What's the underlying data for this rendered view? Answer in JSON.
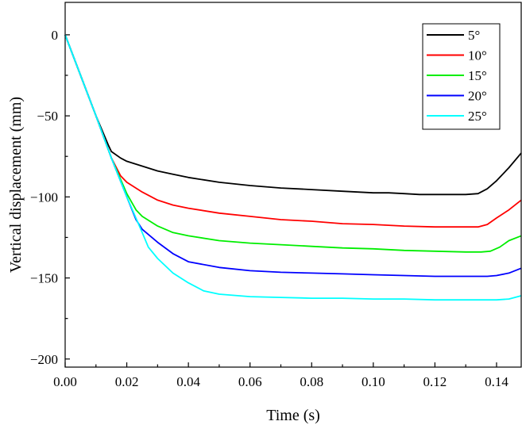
{
  "chart_data": {
    "type": "line",
    "title": "",
    "xlabel": "Time (s)",
    "ylabel": "Vertical displacement (mm)",
    "xlim": [
      0,
      0.148
    ],
    "ylim": [
      -205,
      20
    ],
    "xticks": [
      0.0,
      0.02,
      0.04,
      0.06,
      0.08,
      0.1,
      0.12,
      0.14
    ],
    "xtick_labels": [
      "0.00",
      "0.02",
      "0.04",
      "0.06",
      "0.08",
      "0.10",
      "0.12",
      "0.14"
    ],
    "yticks": [
      0,
      -50,
      -100,
      -150,
      -200
    ],
    "ytick_labels": [
      "0",
      "−50",
      "−100",
      "−150",
      "−200"
    ],
    "grid": false,
    "legend_position": "top-right",
    "series": [
      {
        "name": "5°",
        "color": "#000000",
        "x": [
          0,
          0.005,
          0.01,
          0.014,
          0.015,
          0.018,
          0.02,
          0.025,
          0.03,
          0.035,
          0.04,
          0.05,
          0.06,
          0.07,
          0.08,
          0.09,
          0.1,
          0.105,
          0.11,
          0.115,
          0.12,
          0.125,
          0.13,
          0.134,
          0.137,
          0.14,
          0.144,
          0.148
        ],
        "y": [
          0,
          -25,
          -50,
          -68,
          -72,
          -76,
          -78,
          -81,
          -84,
          -86,
          -88,
          -91,
          -93,
          -94.5,
          -95.5,
          -96.5,
          -97.5,
          -97.5,
          -98,
          -98.5,
          -98.5,
          -98.5,
          -98.5,
          -98,
          -95,
          -90,
          -82,
          -73
        ]
      },
      {
        "name": "10°",
        "color": "#ff0000",
        "x": [
          0,
          0.005,
          0.01,
          0.015,
          0.018,
          0.02,
          0.025,
          0.03,
          0.035,
          0.04,
          0.05,
          0.06,
          0.07,
          0.08,
          0.09,
          0.1,
          0.11,
          0.12,
          0.13,
          0.134,
          0.137,
          0.14,
          0.144,
          0.148
        ],
        "y": [
          0,
          -25,
          -50,
          -76,
          -87,
          -91,
          -97,
          -102,
          -105,
          -107,
          -110,
          -112,
          -114,
          -115,
          -116.5,
          -117,
          -118,
          -118.5,
          -118.5,
          -118.5,
          -117,
          -113,
          -108,
          -102
        ]
      },
      {
        "name": "15°",
        "color": "#00ee00",
        "x": [
          0,
          0.005,
          0.01,
          0.015,
          0.02,
          0.023,
          0.025,
          0.03,
          0.035,
          0.04,
          0.05,
          0.06,
          0.07,
          0.08,
          0.09,
          0.1,
          0.11,
          0.12,
          0.13,
          0.135,
          0.138,
          0.141,
          0.144,
          0.148
        ],
        "y": [
          0,
          -25,
          -50,
          -76,
          -98,
          -108,
          -112,
          -118,
          -122,
          -124,
          -127,
          -128.5,
          -129.5,
          -130.5,
          -131.5,
          -132,
          -133,
          -133.5,
          -134,
          -134,
          -133.5,
          -131,
          -127,
          -124
        ]
      },
      {
        "name": "20°",
        "color": "#0000ff",
        "x": [
          0,
          0.005,
          0.01,
          0.015,
          0.02,
          0.023,
          0.025,
          0.03,
          0.035,
          0.04,
          0.05,
          0.06,
          0.07,
          0.08,
          0.09,
          0.1,
          0.11,
          0.12,
          0.13,
          0.137,
          0.14,
          0.144,
          0.148
        ],
        "y": [
          0,
          -25,
          -50,
          -76,
          -100,
          -114,
          -120,
          -128,
          -135,
          -140,
          -143.5,
          -145.5,
          -146.5,
          -147,
          -147.5,
          -148,
          -148.5,
          -149,
          -149,
          -149,
          -148.5,
          -147,
          -144
        ]
      },
      {
        "name": "25°",
        "color": "#00ffff",
        "x": [
          0,
          0.005,
          0.01,
          0.015,
          0.02,
          0.025,
          0.027,
          0.03,
          0.035,
          0.04,
          0.045,
          0.05,
          0.06,
          0.07,
          0.08,
          0.09,
          0.1,
          0.11,
          0.12,
          0.13,
          0.14,
          0.144,
          0.148
        ],
        "y": [
          0,
          -25,
          -50,
          -76,
          -100,
          -122,
          -131,
          -138,
          -147,
          -153,
          -158,
          -160,
          -161.5,
          -162,
          -162.5,
          -162.5,
          -163,
          -163,
          -163.5,
          -163.5,
          -163.5,
          -163,
          -161
        ]
      }
    ]
  }
}
